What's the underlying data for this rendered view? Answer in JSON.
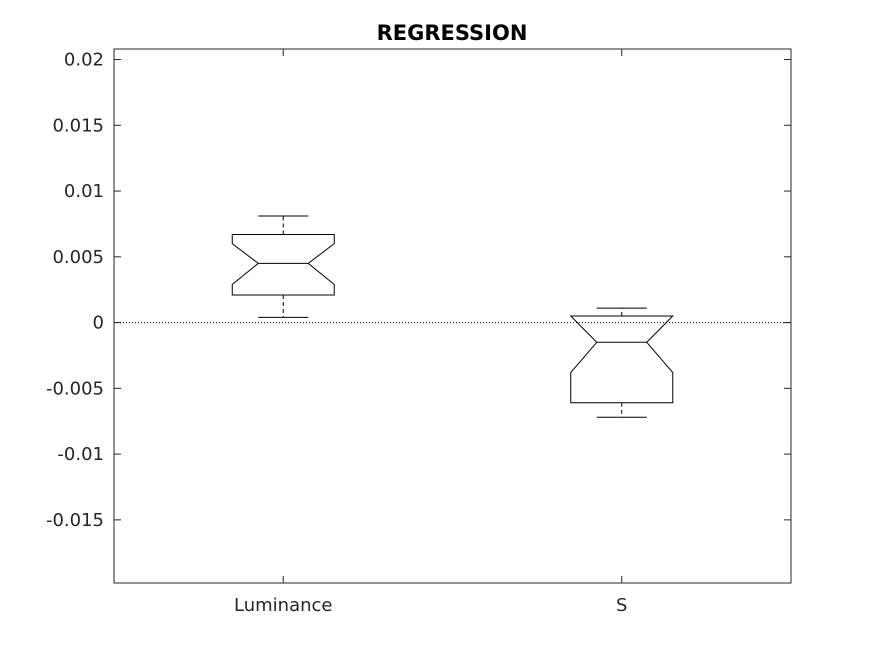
{
  "chart_data": {
    "type": "boxplot",
    "title": "REGRESSION",
    "xlabel": "",
    "ylabel": "",
    "ylim": [
      -0.0198,
      0.0208
    ],
    "yticks": [
      -0.015,
      -0.01,
      -0.005,
      0,
      0.005,
      0.01,
      0.015,
      0.02
    ],
    "ytick_labels": [
      "-0.015",
      "-0.01",
      "-0.005",
      "0",
      "0.005",
      "0.01",
      "0.015",
      "0.02"
    ],
    "categories": [
      "Luminance",
      "S"
    ],
    "boxes": [
      {
        "category": "Luminance",
        "whisker_low": 0.0004,
        "q1": 0.0021,
        "median": 0.0045,
        "q3": 0.0067,
        "whisker_high": 0.0081,
        "notch_low": 0.0029,
        "notch_high": 0.006
      },
      {
        "category": "S",
        "whisker_low": -0.0072,
        "q1": -0.0061,
        "median": -0.0015,
        "q3": 0.0005,
        "whisker_high": 0.0011,
        "notch_low": -0.0038,
        "notch_high": 0.0005
      }
    ],
    "reference_line": {
      "y": 0,
      "style": "dotted"
    },
    "grid": false,
    "legend": "none"
  }
}
